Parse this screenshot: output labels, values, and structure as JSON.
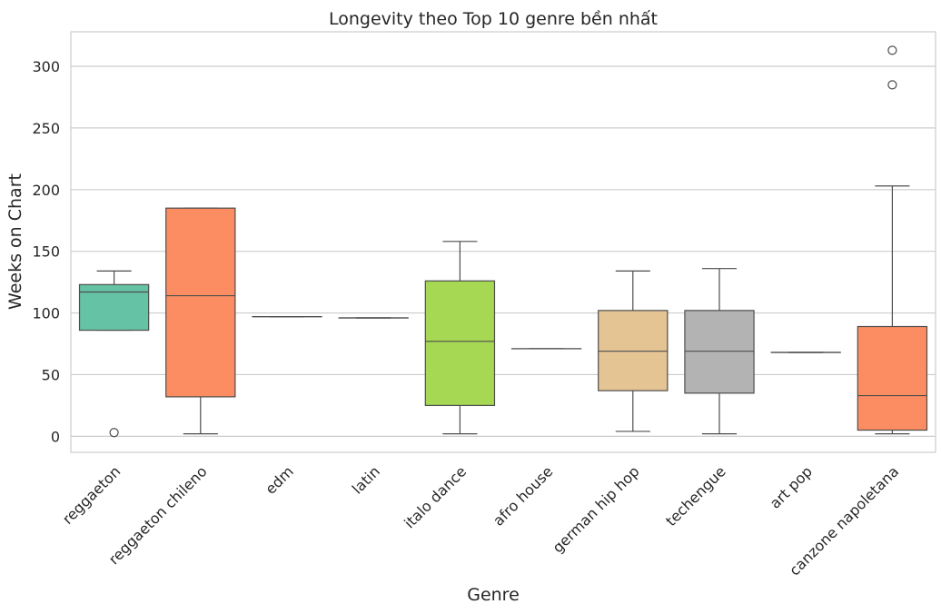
{
  "chart_data": {
    "type": "box",
    "title": "Longevity theo Top 10 genre bền nhất",
    "xlabel": "Genre",
    "ylabel": "Weeks on Chart",
    "ylim": [
      -13,
      328
    ],
    "yticks": [
      0,
      50,
      100,
      150,
      200,
      250,
      300
    ],
    "grid": "horizontal",
    "categories": [
      "reggaeton",
      "reggaeton chileno",
      "edm",
      "latin",
      "italo dance",
      "afro house",
      "german hip hop",
      "techengue",
      "art pop",
      "canzone napoletana"
    ],
    "boxes": [
      {
        "category": "reggaeton",
        "whisker_low": 86,
        "q1": 86,
        "median": 117,
        "q3": 123,
        "whisker_high": 134,
        "outliers": [
          3
        ],
        "color": "#66c2a5"
      },
      {
        "category": "reggaeton chileno",
        "whisker_low": 2,
        "q1": 32,
        "median": 114,
        "q3": 185,
        "whisker_high": 185,
        "outliers": [],
        "color": "#fc8d62"
      },
      {
        "category": "edm",
        "whisker_low": 97,
        "q1": 97,
        "median": 97,
        "q3": 97,
        "whisker_high": 97,
        "outliers": [],
        "color": "#8da0cb"
      },
      {
        "category": "latin",
        "whisker_low": 96,
        "q1": 96,
        "median": 96,
        "q3": 96,
        "whisker_high": 96,
        "outliers": [],
        "color": "#e78ac3"
      },
      {
        "category": "italo dance",
        "whisker_low": 2,
        "q1": 25,
        "median": 77,
        "q3": 126,
        "whisker_high": 158,
        "outliers": [],
        "color": "#a6d854"
      },
      {
        "category": "afro house",
        "whisker_low": 71,
        "q1": 71,
        "median": 71,
        "q3": 71,
        "whisker_high": 71,
        "outliers": [],
        "color": "#ffd92f"
      },
      {
        "category": "german hip hop",
        "whisker_low": 4,
        "q1": 37,
        "median": 69,
        "q3": 102,
        "whisker_high": 134,
        "outliers": [],
        "color": "#e5c494"
      },
      {
        "category": "techengue",
        "whisker_low": 2,
        "q1": 35,
        "median": 69,
        "q3": 102,
        "whisker_high": 136,
        "outliers": [],
        "color": "#b3b3b3"
      },
      {
        "category": "art pop",
        "whisker_low": 68,
        "q1": 68,
        "median": 68,
        "q3": 68,
        "whisker_high": 68,
        "outliers": [],
        "color": "#66c2a5"
      },
      {
        "category": "canzone napoletana",
        "whisker_low": 2,
        "q1": 5,
        "median": 33,
        "q3": 89,
        "whisker_high": 203,
        "outliers": [
          285,
          313
        ],
        "color": "#fc8d62"
      }
    ]
  }
}
